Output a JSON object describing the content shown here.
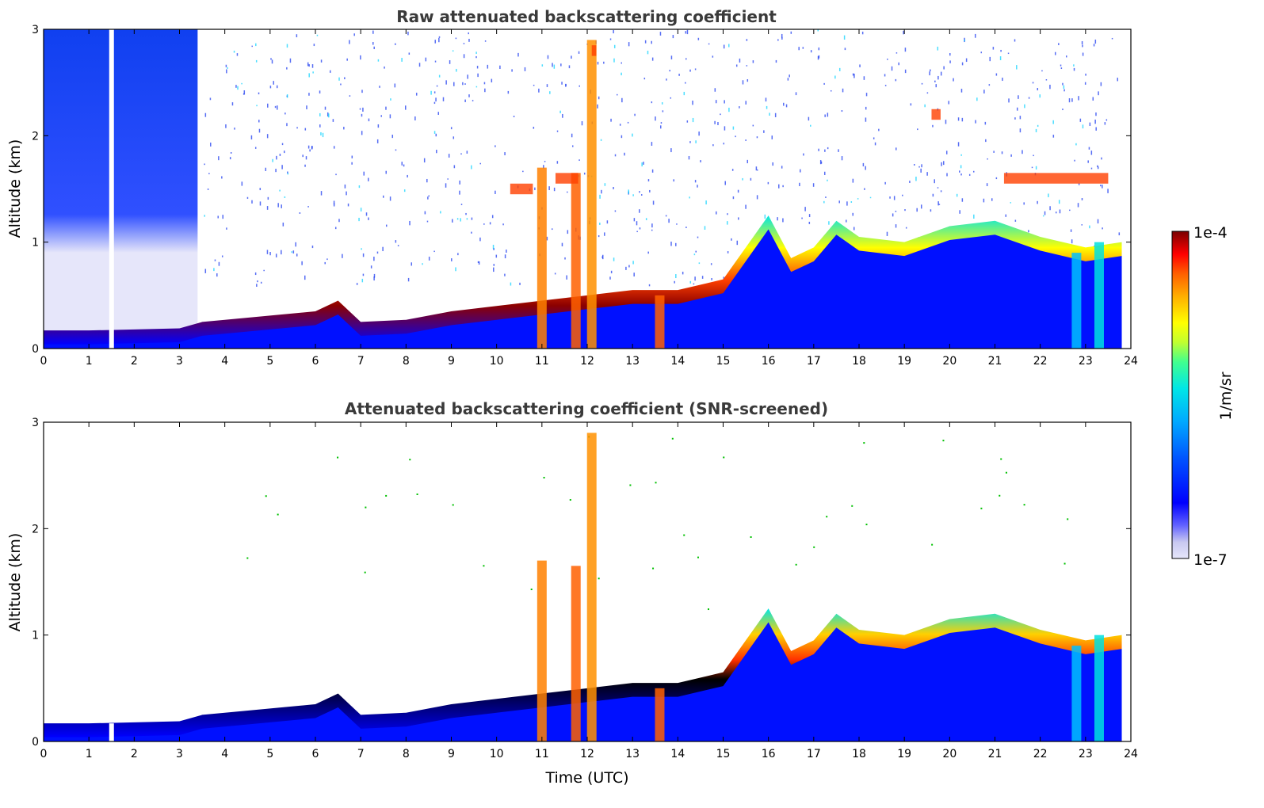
{
  "chart_data": [
    {
      "type": "heatmap",
      "title": "Raw attenuated backscattering coefficient",
      "xlabel": "",
      "ylabel": "Altitude (km)",
      "xlim": [
        0,
        24
      ],
      "ylim": [
        0,
        3
      ],
      "x_ticks": [
        "0",
        "1",
        "2",
        "3",
        "4",
        "5",
        "6",
        "7",
        "8",
        "9",
        "10",
        "11",
        "12",
        "13",
        "14",
        "15",
        "16",
        "17",
        "18",
        "19",
        "20",
        "21",
        "22",
        "23",
        "24"
      ],
      "y_ticks": [
        "0",
        "1",
        "2",
        "3"
      ],
      "data_end_hour": 23.8,
      "gap_hour": 1.5,
      "boundary_layer_top_km": [
        [
          0,
          0.12
        ],
        [
          1,
          0.12
        ],
        [
          2,
          0.13
        ],
        [
          3,
          0.14
        ],
        [
          3.5,
          0.2
        ],
        [
          4,
          0.22
        ],
        [
          5,
          0.26
        ],
        [
          6,
          0.3
        ],
        [
          6.5,
          0.4
        ],
        [
          7,
          0.2
        ],
        [
          8,
          0.22
        ],
        [
          9,
          0.3
        ],
        [
          10,
          0.35
        ],
        [
          11,
          0.4
        ],
        [
          12,
          0.45
        ],
        [
          13,
          0.5
        ],
        [
          14,
          0.5
        ],
        [
          15,
          0.6
        ],
        [
          16,
          1.2
        ],
        [
          16.5,
          0.8
        ],
        [
          17,
          0.9
        ],
        [
          17.5,
          1.15
        ],
        [
          18,
          1.0
        ],
        [
          19,
          0.95
        ],
        [
          20,
          1.1
        ],
        [
          21,
          1.15
        ],
        [
          22,
          1.0
        ],
        [
          23,
          0.9
        ],
        [
          23.8,
          0.95
        ]
      ],
      "elevated_layers_km": [
        {
          "x": [
            10.3,
            10.8
          ],
          "y": 1.5
        },
        {
          "x": [
            11.3,
            11.8
          ],
          "y": 1.6
        },
        {
          "x": [
            12.1,
            12.2
          ],
          "y": 2.8
        },
        {
          "x": [
            19.6,
            19.8
          ],
          "y": 2.2
        },
        {
          "x": [
            21.2,
            23.5
          ],
          "y": 1.6
        }
      ],
      "colormap": [
        "#e6e6fa",
        "#0000ff",
        "#00bfff",
        "#00ffaa",
        "#ffff00",
        "#ff8c00",
        "#ff0000",
        "#8b0000"
      ]
    },
    {
      "type": "heatmap",
      "title": "Attenuated backscattering coefficient (SNR-screened)",
      "xlabel": "Time (UTC)",
      "ylabel": "Altitude (km)",
      "xlim": [
        0,
        24
      ],
      "ylim": [
        0,
        3
      ],
      "x_ticks": [
        "0",
        "1",
        "2",
        "3",
        "4",
        "5",
        "6",
        "7",
        "8",
        "9",
        "10",
        "11",
        "12",
        "13",
        "14",
        "15",
        "16",
        "17",
        "18",
        "19",
        "20",
        "21",
        "22",
        "23",
        "24"
      ],
      "y_ticks": [
        "0",
        "1",
        "2",
        "3"
      ],
      "data_end_hour": 23.8,
      "gap_hour": 1.5,
      "boundary_layer_top_km": [
        [
          0,
          0.12
        ],
        [
          1,
          0.12
        ],
        [
          2,
          0.13
        ],
        [
          3,
          0.14
        ],
        [
          3.5,
          0.2
        ],
        [
          4,
          0.22
        ],
        [
          5,
          0.26
        ],
        [
          6,
          0.3
        ],
        [
          6.5,
          0.4
        ],
        [
          7,
          0.2
        ],
        [
          8,
          0.22
        ],
        [
          9,
          0.3
        ],
        [
          10,
          0.35
        ],
        [
          11,
          0.4
        ],
        [
          12,
          0.45
        ],
        [
          13,
          0.5
        ],
        [
          14,
          0.5
        ],
        [
          15,
          0.6
        ],
        [
          16,
          1.2
        ],
        [
          16.5,
          0.8
        ],
        [
          17,
          0.9
        ],
        [
          17.5,
          1.15
        ],
        [
          18,
          1.0
        ],
        [
          19,
          0.95
        ],
        [
          20,
          1.1
        ],
        [
          21,
          1.15
        ],
        [
          22,
          1.0
        ],
        [
          23,
          0.9
        ],
        [
          23.8,
          0.95
        ]
      ],
      "colormap": [
        "#0000ff",
        "#00bfff",
        "#00ffaa",
        "#ffff00",
        "#ff8c00",
        "#ff0000",
        "#8b0000",
        "#000000"
      ]
    }
  ],
  "colorbar": {
    "label": "1/m/sr",
    "max_label": "1e-4",
    "min_label": "1e-7",
    "stops": [
      "#e6e6fa",
      "#c8c8f0",
      "#6464ff",
      "#0000ff",
      "#0050ff",
      "#00aaff",
      "#00e6e6",
      "#40ff90",
      "#c0ff30",
      "#ffff00",
      "#ffb000",
      "#ff6000",
      "#ff0000",
      "#b40000",
      "#780000"
    ]
  }
}
